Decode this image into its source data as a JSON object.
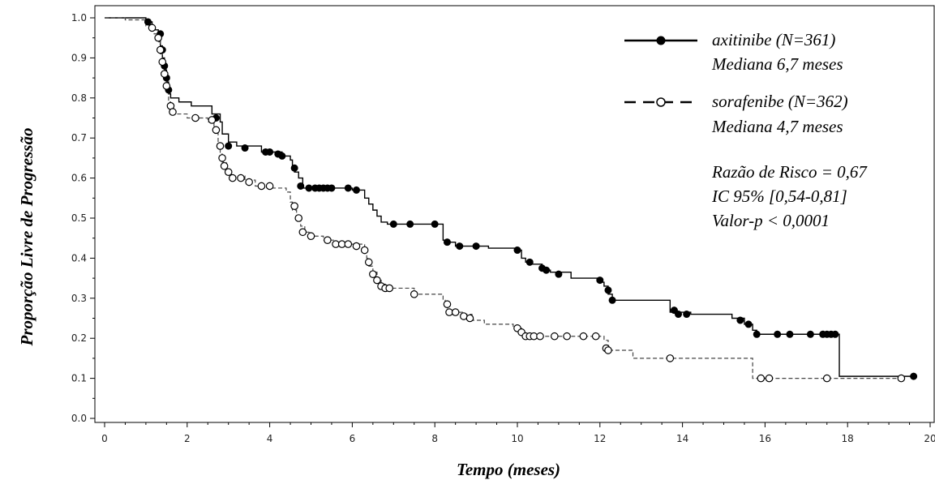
{
  "chart_data": {
    "type": "line",
    "subtype": "kaplan-meier",
    "xlabel": "Tempo (meses)",
    "ylabel": "Proporção Livre de Progressão",
    "xlim": [
      0,
      20
    ],
    "ylim": [
      0,
      1.0
    ],
    "x_ticks": [
      "0",
      "2",
      "4",
      "6",
      "8",
      "10",
      "12",
      "14",
      "16",
      "18",
      "20"
    ],
    "y_ticks": [
      "0.0",
      "0.1",
      "0.2",
      "0.3",
      "0.4",
      "0.5",
      "0.6",
      "0.7",
      "0.8",
      "0.9",
      "1.0"
    ],
    "grid": false,
    "legend_position": "top-right",
    "series": [
      {
        "name": "axitinibe (N=361)",
        "median_label": "Mediana 6,7 meses",
        "line_style": "solid",
        "marker": "filled-circle",
        "color": "#000000",
        "steps": [
          [
            0,
            1.0
          ],
          [
            1.0,
            0.99
          ],
          [
            1.15,
            0.97
          ],
          [
            1.3,
            0.96
          ],
          [
            1.35,
            0.93
          ],
          [
            1.4,
            0.9
          ],
          [
            1.45,
            0.87
          ],
          [
            1.5,
            0.84
          ],
          [
            1.55,
            0.81
          ],
          [
            1.6,
            0.8
          ],
          [
            1.8,
            0.79
          ],
          [
            2.1,
            0.78
          ],
          [
            2.6,
            0.76
          ],
          [
            2.8,
            0.74
          ],
          [
            2.85,
            0.71
          ],
          [
            3.0,
            0.69
          ],
          [
            3.2,
            0.68
          ],
          [
            3.8,
            0.665
          ],
          [
            4.3,
            0.655
          ],
          [
            4.5,
            0.645
          ],
          [
            4.55,
            0.63
          ],
          [
            4.6,
            0.615
          ],
          [
            4.7,
            0.6
          ],
          [
            4.8,
            0.575
          ],
          [
            6.0,
            0.57
          ],
          [
            6.3,
            0.55
          ],
          [
            6.4,
            0.535
          ],
          [
            6.5,
            0.52
          ],
          [
            6.6,
            0.505
          ],
          [
            6.7,
            0.49
          ],
          [
            6.85,
            0.485
          ],
          [
            8.2,
            0.445
          ],
          [
            8.35,
            0.44
          ],
          [
            8.5,
            0.43
          ],
          [
            8.7,
            0.43
          ],
          [
            9.3,
            0.425
          ],
          [
            10.0,
            0.42
          ],
          [
            10.1,
            0.4
          ],
          [
            10.2,
            0.39
          ],
          [
            10.3,
            0.385
          ],
          [
            10.6,
            0.37
          ],
          [
            10.8,
            0.365
          ],
          [
            11.3,
            0.35
          ],
          [
            12.0,
            0.34
          ],
          [
            12.1,
            0.33
          ],
          [
            12.2,
            0.31
          ],
          [
            12.3,
            0.295
          ],
          [
            13.7,
            0.265
          ],
          [
            14.2,
            0.26
          ],
          [
            15.2,
            0.25
          ],
          [
            15.5,
            0.235
          ],
          [
            15.7,
            0.22
          ],
          [
            15.8,
            0.21
          ],
          [
            17.8,
            0.105
          ],
          [
            19.6,
            0.105
          ]
        ],
        "censored": [
          [
            1.05,
            0.99
          ],
          [
            1.35,
            0.96
          ],
          [
            1.4,
            0.92
          ],
          [
            1.45,
            0.88
          ],
          [
            1.5,
            0.85
          ],
          [
            1.55,
            0.82
          ],
          [
            2.7,
            0.75
          ],
          [
            3.0,
            0.68
          ],
          [
            3.4,
            0.675
          ],
          [
            3.9,
            0.665
          ],
          [
            4.0,
            0.665
          ],
          [
            4.2,
            0.66
          ],
          [
            4.3,
            0.655
          ],
          [
            4.6,
            0.625
          ],
          [
            4.75,
            0.58
          ],
          [
            4.95,
            0.575
          ],
          [
            5.1,
            0.575
          ],
          [
            5.2,
            0.575
          ],
          [
            5.3,
            0.575
          ],
          [
            5.4,
            0.575
          ],
          [
            5.5,
            0.575
          ],
          [
            5.9,
            0.575
          ],
          [
            6.1,
            0.57
          ],
          [
            7.0,
            0.485
          ],
          [
            7.4,
            0.485
          ],
          [
            8.0,
            0.485
          ],
          [
            8.3,
            0.44
          ],
          [
            8.6,
            0.43
          ],
          [
            9.0,
            0.43
          ],
          [
            10.0,
            0.42
          ],
          [
            10.3,
            0.39
          ],
          [
            10.6,
            0.375
          ],
          [
            10.7,
            0.37
          ],
          [
            11.0,
            0.36
          ],
          [
            12.0,
            0.345
          ],
          [
            12.2,
            0.32
          ],
          [
            12.3,
            0.295
          ],
          [
            13.8,
            0.27
          ],
          [
            13.9,
            0.26
          ],
          [
            14.1,
            0.26
          ],
          [
            15.4,
            0.245
          ],
          [
            15.6,
            0.235
          ],
          [
            15.8,
            0.21
          ],
          [
            16.3,
            0.21
          ],
          [
            16.6,
            0.21
          ],
          [
            17.1,
            0.21
          ],
          [
            17.4,
            0.21
          ],
          [
            17.5,
            0.21
          ],
          [
            17.6,
            0.21
          ],
          [
            17.7,
            0.21
          ],
          [
            19.6,
            0.105
          ]
        ]
      },
      {
        "name": "sorafenibe (N=362)",
        "median_label": "Mediana 4,7 meses",
        "line_style": "dashed",
        "marker": "open-circle",
        "color": "#444444",
        "steps": [
          [
            0,
            1.0
          ],
          [
            0.5,
            0.995
          ],
          [
            1.0,
            0.98
          ],
          [
            1.2,
            0.96
          ],
          [
            1.3,
            0.94
          ],
          [
            1.35,
            0.91
          ],
          [
            1.4,
            0.88
          ],
          [
            1.45,
            0.85
          ],
          [
            1.5,
            0.82
          ],
          [
            1.55,
            0.79
          ],
          [
            1.6,
            0.77
          ],
          [
            1.7,
            0.76
          ],
          [
            2.0,
            0.75
          ],
          [
            2.5,
            0.74
          ],
          [
            2.65,
            0.72
          ],
          [
            2.75,
            0.69
          ],
          [
            2.8,
            0.66
          ],
          [
            2.85,
            0.64
          ],
          [
            2.95,
            0.62
          ],
          [
            3.05,
            0.605
          ],
          [
            3.4,
            0.595
          ],
          [
            3.65,
            0.58
          ],
          [
            4.0,
            0.575
          ],
          [
            4.4,
            0.565
          ],
          [
            4.5,
            0.54
          ],
          [
            4.55,
            0.52
          ],
          [
            4.65,
            0.5
          ],
          [
            4.75,
            0.48
          ],
          [
            4.85,
            0.465
          ],
          [
            4.95,
            0.455
          ],
          [
            5.3,
            0.445
          ],
          [
            5.6,
            0.435
          ],
          [
            6.3,
            0.42
          ],
          [
            6.35,
            0.4
          ],
          [
            6.4,
            0.38
          ],
          [
            6.5,
            0.365
          ],
          [
            6.6,
            0.35
          ],
          [
            6.7,
            0.335
          ],
          [
            6.8,
            0.325
          ],
          [
            7.5,
            0.31
          ],
          [
            8.2,
            0.295
          ],
          [
            8.25,
            0.28
          ],
          [
            8.3,
            0.27
          ],
          [
            8.5,
            0.265
          ],
          [
            8.7,
            0.26
          ],
          [
            8.9,
            0.245
          ],
          [
            9.2,
            0.235
          ],
          [
            9.9,
            0.225
          ],
          [
            10.1,
            0.21
          ],
          [
            10.2,
            0.205
          ],
          [
            12.1,
            0.195
          ],
          [
            12.2,
            0.17
          ],
          [
            12.8,
            0.15
          ],
          [
            15.7,
            0.1
          ],
          [
            19.3,
            0.1
          ]
        ],
        "censored": [
          [
            1.15,
            0.975
          ],
          [
            1.3,
            0.95
          ],
          [
            1.35,
            0.92
          ],
          [
            1.4,
            0.89
          ],
          [
            1.45,
            0.86
          ],
          [
            1.5,
            0.83
          ],
          [
            1.6,
            0.78
          ],
          [
            1.65,
            0.765
          ],
          [
            2.2,
            0.75
          ],
          [
            2.6,
            0.745
          ],
          [
            2.7,
            0.72
          ],
          [
            2.8,
            0.68
          ],
          [
            2.85,
            0.65
          ],
          [
            2.9,
            0.63
          ],
          [
            3.0,
            0.615
          ],
          [
            3.1,
            0.6
          ],
          [
            3.3,
            0.6
          ],
          [
            3.5,
            0.59
          ],
          [
            3.8,
            0.58
          ],
          [
            4.0,
            0.58
          ],
          [
            4.6,
            0.53
          ],
          [
            4.7,
            0.5
          ],
          [
            4.8,
            0.465
          ],
          [
            5.0,
            0.455
          ],
          [
            5.4,
            0.445
          ],
          [
            5.6,
            0.435
          ],
          [
            5.75,
            0.435
          ],
          [
            5.9,
            0.435
          ],
          [
            6.1,
            0.43
          ],
          [
            6.3,
            0.42
          ],
          [
            6.4,
            0.39
          ],
          [
            6.5,
            0.36
          ],
          [
            6.6,
            0.345
          ],
          [
            6.7,
            0.33
          ],
          [
            6.8,
            0.325
          ],
          [
            6.9,
            0.325
          ],
          [
            7.5,
            0.31
          ],
          [
            8.3,
            0.285
          ],
          [
            8.35,
            0.265
          ],
          [
            8.5,
            0.265
          ],
          [
            8.7,
            0.255
          ],
          [
            8.85,
            0.25
          ],
          [
            10.0,
            0.225
          ],
          [
            10.1,
            0.215
          ],
          [
            10.2,
            0.205
          ],
          [
            10.3,
            0.205
          ],
          [
            10.4,
            0.205
          ],
          [
            10.55,
            0.205
          ],
          [
            10.9,
            0.205
          ],
          [
            11.2,
            0.205
          ],
          [
            11.6,
            0.205
          ],
          [
            11.9,
            0.205
          ],
          [
            12.15,
            0.175
          ],
          [
            12.2,
            0.17
          ],
          [
            13.7,
            0.15
          ],
          [
            15.9,
            0.1
          ],
          [
            16.1,
            0.1
          ],
          [
            17.5,
            0.1
          ],
          [
            19.3,
            0.1
          ]
        ]
      }
    ],
    "annotations": {
      "hazard_ratio": "Razão de Risco = 0,67",
      "confidence_interval": "IC 95% [0,54-0,81]",
      "p_value": "Valor-p < 0,0001"
    }
  }
}
